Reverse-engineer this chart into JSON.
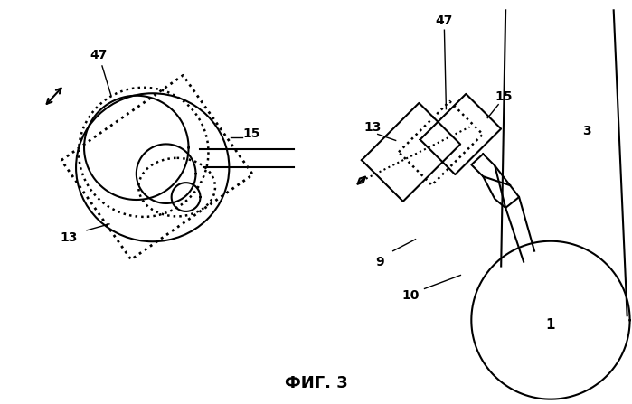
{
  "fig_label": "ФИГ. 3",
  "bg_color": "#ffffff",
  "line_color": "#000000",
  "line_width": 1.5
}
